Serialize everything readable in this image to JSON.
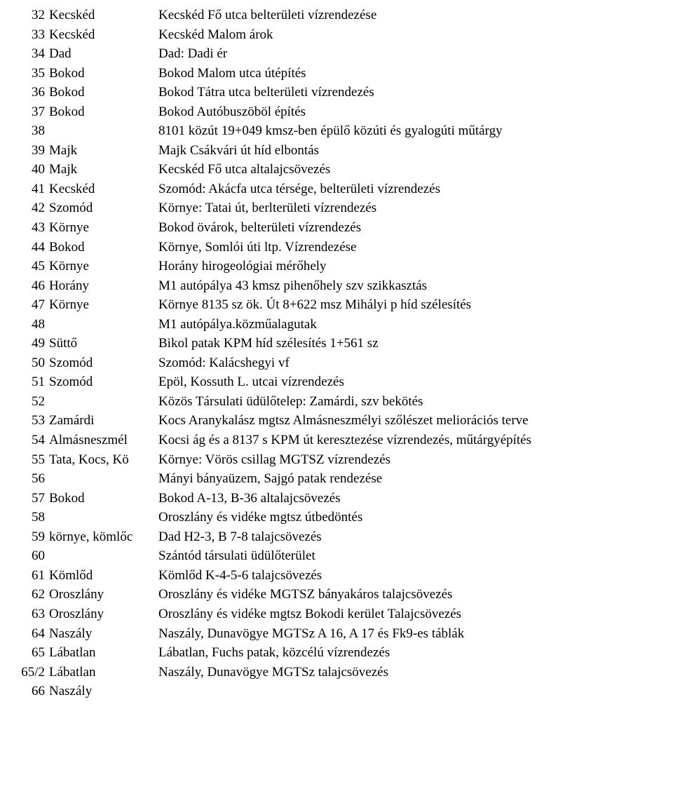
{
  "rows": [
    {
      "num": "32",
      "loc": "Kecskéd",
      "desc": "Kecskéd Fő utca belterületi vízrendezése"
    },
    {
      "num": "33",
      "loc": "Kecskéd",
      "desc": "Kecskéd Malom árok"
    },
    {
      "num": "34",
      "loc": "Dad",
      "desc": "Dad: Dadi ér"
    },
    {
      "num": "35",
      "loc": "Bokod",
      "desc": "Bokod Malom utca útépítés"
    },
    {
      "num": "36",
      "loc": "Bokod",
      "desc": "Bokod Tátra utca belterületi vízrendezés"
    },
    {
      "num": "37",
      "loc": "Bokod",
      "desc": "Bokod Autóbuszöböl építés"
    },
    {
      "num": "38",
      "loc": "",
      "desc": "8101 közút 19+049 kmsz-ben épülő közúti és gyalogúti műtárgy"
    },
    {
      "num": "39",
      "loc": "Majk",
      "desc": "Majk Csákvári út híd elbontás"
    },
    {
      "num": "40",
      "loc": "Majk",
      "desc": "Kecskéd Fő utca altalajcsövezés"
    },
    {
      "num": "41",
      "loc": "Kecskéd",
      "desc": "Szomód: Akácfa utca térsége, belterületi vízrendezés"
    },
    {
      "num": "42",
      "loc": "Szomód",
      "desc": "Környe: Tatai út, berlterületi vízrendezés"
    },
    {
      "num": "43",
      "loc": "Környe",
      "desc": "Bokod övárok, belterületi vízrendezés"
    },
    {
      "num": "44",
      "loc": "Bokod",
      "desc": "Környe, Somlói úti ltp. Vízrendezése"
    },
    {
      "num": "45",
      "loc": "Környe",
      "desc": "Horány hirogeológiai mérőhely"
    },
    {
      "num": "46",
      "loc": "Horány",
      "desc": "M1 autópálya 43 kmsz pihenőhely szv szikkasztás"
    },
    {
      "num": "47",
      "loc": "Környe",
      "desc": "Környe 8135 sz ök. Út 8+622 msz Mihályi p híd szélesítés"
    },
    {
      "num": "48",
      "loc": "",
      "desc": "M1 autópálya.közműalagutak"
    },
    {
      "num": "49",
      "loc": "Süttő",
      "desc": "Bikol patak KPM híd szélesítés 1+561 sz"
    },
    {
      "num": "50",
      "loc": "Szomód",
      "desc": "Szomód: Kalácshegyi vf"
    },
    {
      "num": "51",
      "loc": "Szomód",
      "desc": "Epöl, Kossuth L. utcai vízrendezés"
    },
    {
      "num": "52",
      "loc": "",
      "desc": "Közös Társulati üdülőtelep: Zamárdi, szv bekötés"
    },
    {
      "num": "53",
      "loc": "Zamárdi",
      "desc": "Kocs Aranykalász mgtsz Almásneszmélyi szőlészet meliorációs terve"
    },
    {
      "num": "54",
      "loc": "Almásneszmél",
      "desc": "Kocsi ág és a 8137 s KPM út keresztezése vízrendezés, műtárgyépítés"
    },
    {
      "num": "55",
      "loc": "Tata, Kocs, Kö",
      "desc": "Környe: Vörös csillag MGTSZ vízrendezés"
    },
    {
      "num": "56",
      "loc": "",
      "desc": "Mányi bányaüzem, Sajgó patak rendezése"
    },
    {
      "num": "57",
      "loc": "Bokod",
      "desc": "Bokod A-13, B-36 altalajcsövezés"
    },
    {
      "num": "58",
      "loc": "",
      "desc": "Oroszlány és vidéke mgtsz útbedöntés"
    },
    {
      "num": "59",
      "loc": "környe, kömlőc",
      "desc": "Dad H2-3, B 7-8 talajcsövezés"
    },
    {
      "num": "60",
      "loc": "",
      "desc": "Szántód társulati üdülőterület"
    },
    {
      "num": "61",
      "loc": "Kömlőd",
      "desc": "Kömlőd K-4-5-6 talajcsövezés"
    },
    {
      "num": "62",
      "loc": "Oroszlány",
      "desc": "Oroszlány és vidéke MGTSZ bányakáros talajcsövezés"
    },
    {
      "num": "63",
      "loc": "Oroszlány",
      "desc": "Oroszlány és vidéke mgtsz Bokodi kerület Talajcsövezés"
    },
    {
      "num": "64",
      "loc": "Naszály",
      "desc": "Naszály, Dunavögye MGTSz A 16, A 17 és Fk9-es táblák"
    },
    {
      "num": "65",
      "loc": "Lábatlan",
      "desc": "Lábatlan, Fuchs patak, közcélú vízrendezés"
    },
    {
      "num": "65/2",
      "loc": "Lábatlan",
      "desc": "Naszály, Dunavögye MGTSz talajcsövezés"
    },
    {
      "num": "66",
      "loc": "Naszály",
      "desc": ""
    }
  ]
}
